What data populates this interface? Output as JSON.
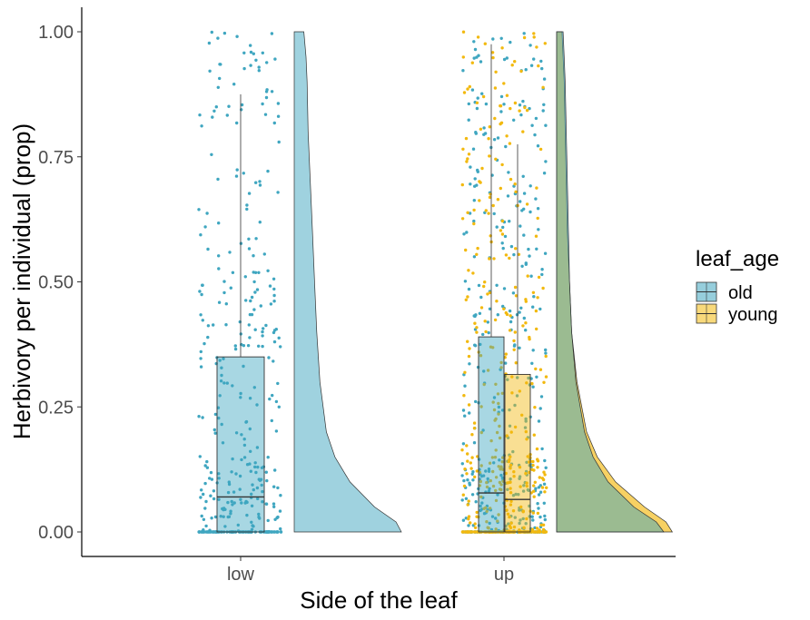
{
  "chart_data": {
    "type": "raincloud",
    "xlabel": "Side of the leaf",
    "ylabel": "Herbivory per individual (prop)",
    "categories": [
      "low",
      "up"
    ],
    "ylim": [
      0,
      1
    ],
    "yticks": [
      "0.00",
      "0.25",
      "0.50",
      "0.75",
      "1.00"
    ],
    "ytick_values": [
      0,
      0.25,
      0.5,
      0.75,
      1.0
    ],
    "grid": false,
    "legend": {
      "title": "leaf_age",
      "position": "right",
      "entries": [
        {
          "label": "old",
          "color": "#3FA6C0"
        },
        {
          "label": "young",
          "color": "#F2B90F"
        }
      ]
    },
    "series": [
      {
        "name": "old",
        "color": "#3FA6C0",
        "boxes": [
          {
            "category": "low",
            "min": 0,
            "q1": 0,
            "median": 0.07,
            "q3": 0.35,
            "max": 0.875
          },
          {
            "category": "up",
            "min": 0,
            "q1": 0,
            "median": 0.078,
            "q3": 0.39,
            "max": 0.975
          }
        ],
        "density": [
          {
            "category": "low",
            "y": [
              0,
              0.02,
              0.05,
              0.1,
              0.15,
              0.2,
              0.3,
              0.4,
              0.5,
              0.6,
              0.7,
              0.8,
              0.9,
              0.95,
              1.0
            ],
            "d": [
              1.0,
              0.95,
              0.75,
              0.52,
              0.38,
              0.3,
              0.24,
              0.21,
              0.19,
              0.17,
              0.15,
              0.13,
              0.12,
              0.11,
              0.09
            ]
          },
          {
            "category": "up",
            "y": [
              0,
              0.02,
              0.05,
              0.1,
              0.15,
              0.2,
              0.3,
              0.4,
              0.5,
              0.6,
              0.7,
              0.8,
              0.9,
              0.95,
              1.0
            ],
            "d": [
              1.0,
              0.93,
              0.72,
              0.48,
              0.34,
              0.26,
              0.18,
              0.14,
              0.12,
              0.11,
              0.1,
              0.09,
              0.08,
              0.07,
              0.06
            ]
          }
        ]
      },
      {
        "name": "young",
        "color": "#F2B90F",
        "boxes": [
          {
            "category": "up",
            "min": 0,
            "q1": 0,
            "median": 0.065,
            "q3": 0.315,
            "max": 0.775
          }
        ],
        "density": [
          {
            "category": "up",
            "y": [
              0,
              0.02,
              0.05,
              0.1,
              0.15,
              0.2,
              0.3,
              0.4,
              0.5,
              0.6,
              0.7,
              0.8,
              0.9,
              0.95,
              1.0
            ],
            "d": [
              1.08,
              1.02,
              0.82,
              0.55,
              0.38,
              0.28,
              0.19,
              0.14,
              0.12,
              0.1,
              0.09,
              0.08,
              0.07,
              0.06,
              0.05
            ]
          }
        ]
      }
    ]
  }
}
